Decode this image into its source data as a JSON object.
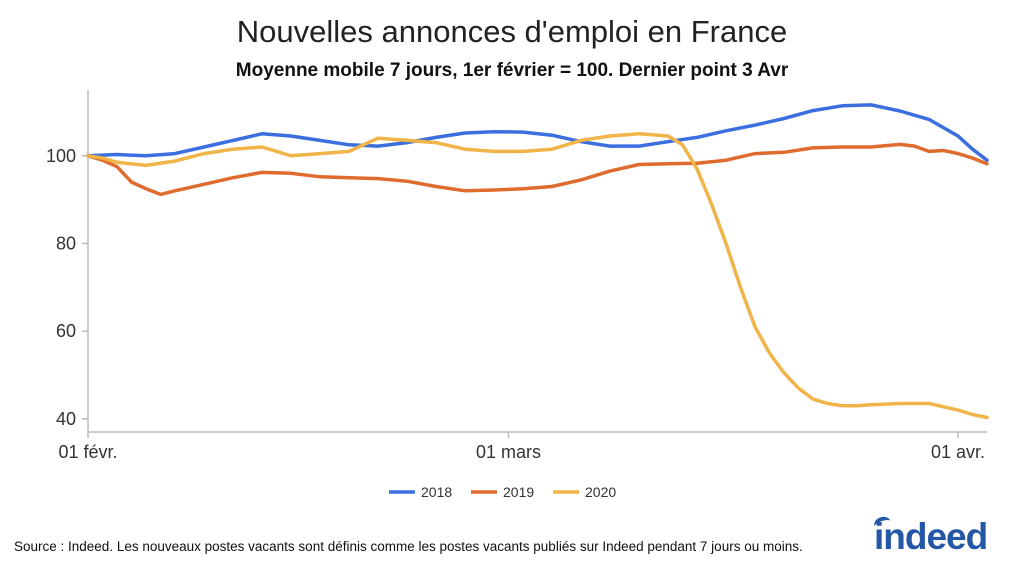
{
  "chart_data": {
    "type": "line",
    "title": "Nouvelles annonces d'emploi en France",
    "subtitle": "Moyenne mobile 7 jours, 1er février = 100. Dernier point 3 Avr",
    "x_tick_labels": [
      "01 févr.",
      "01 mars",
      "01 avr."
    ],
    "x_tick_days": [
      0,
      29,
      60
    ],
    "xlim": [
      0,
      62
    ],
    "ylim": [
      37,
      115
    ],
    "y_ticks": [
      40,
      60,
      80,
      100
    ],
    "legend_placement": "bottom-center",
    "grid": false,
    "series": [
      {
        "name": "2018",
        "color": "#3b6fe0",
        "x": [
          0,
          2,
          4,
          6,
          8,
          10,
          12,
          14,
          16,
          18,
          20,
          22,
          24,
          26,
          28,
          30,
          32,
          34,
          36,
          38,
          40,
          42,
          44,
          46,
          48,
          50,
          52,
          54,
          56,
          58,
          60,
          61,
          62
        ],
        "values": [
          100,
          100.3,
          100,
          100.5,
          102,
          103.5,
          105,
          104.5,
          103.5,
          102.5,
          102.2,
          103,
          104.2,
          105.2,
          105.5,
          105.4,
          104.7,
          103.2,
          102.2,
          102.2,
          103.2,
          104.2,
          105.7,
          107,
          108.5,
          110.3,
          111.4,
          111.6,
          110.2,
          108.3,
          104.5,
          101.5,
          99
        ]
      },
      {
        "name": "2019",
        "color": "#e06b2f",
        "x": [
          0,
          1,
          2,
          3,
          4,
          5,
          6,
          8,
          10,
          12,
          14,
          16,
          18,
          20,
          22,
          24,
          26,
          28,
          30,
          32,
          34,
          36,
          38,
          40,
          42,
          44,
          46,
          48,
          50,
          52,
          54,
          56,
          57,
          58,
          59,
          60,
          61,
          62
        ],
        "values": [
          100,
          99,
          97.5,
          94,
          92.5,
          91.2,
          92,
          93.5,
          95,
          96.2,
          96,
          95.2,
          95,
          94.8,
          94.2,
          93,
          92,
          92.2,
          92.5,
          93,
          94.5,
          96.5,
          98,
          98.2,
          98.3,
          99,
          100.5,
          100.8,
          101.8,
          102,
          102,
          102.6,
          102.2,
          101,
          101.2,
          100.5,
          99.5,
          98.2
        ]
      },
      {
        "name": "2020",
        "color": "#f0b448",
        "x": [
          0,
          1,
          2,
          4,
          6,
          8,
          10,
          12,
          14,
          16,
          18,
          20,
          22,
          24,
          26,
          28,
          30,
          32,
          34,
          36,
          38,
          40,
          41,
          42,
          43,
          44,
          45,
          46,
          47,
          48,
          49,
          50,
          51,
          52,
          53,
          54,
          56,
          58,
          60,
          61,
          62
        ],
        "values": [
          100,
          99.5,
          98.5,
          97.8,
          98.8,
          100.5,
          101.5,
          102,
          100,
          100.5,
          101,
          104,
          103.5,
          103,
          101.5,
          101,
          101,
          101.5,
          103.5,
          104.5,
          105,
          104.5,
          102.5,
          97,
          89,
          80,
          70,
          61,
          55,
          50.5,
          47,
          44.5,
          43.5,
          43,
          43,
          43.2,
          43.5,
          43.5,
          42,
          41,
          40.3
        ]
      }
    ]
  },
  "footer": {
    "source": "Source : Indeed. Les nouveaux postes vacants sont définis comme les postes vacants publiés sur Indeed pendant 7 jours ou moins.",
    "logo": "indeed"
  }
}
